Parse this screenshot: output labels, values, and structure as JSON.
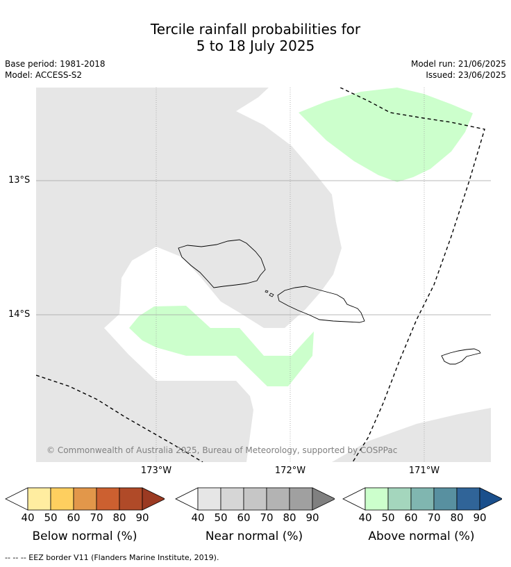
{
  "title_line1": "Tercile rainfall probabilities for",
  "title_line2": "5 to 18 July 2025",
  "meta_left": [
    "Base period: 1981-2018",
    "Model: ACCESS-S2"
  ],
  "meta_right": [
    "Model run: 21/06/2025",
    "Issued: 23/06/2025"
  ],
  "map": {
    "lat_labels": [
      "13°S",
      "14°S"
    ],
    "lon_labels": [
      "173°W",
      "172°W",
      "171°W"
    ],
    "copyright": "© Commonwealth of Australia 2025, Bureau of Meteorology, supported by COSPPac",
    "colors": {
      "near_normal_40": "#e6e6e6",
      "above_normal_40": "#ccffcc",
      "coast": "#000000",
      "eez": "#000000"
    }
  },
  "colorbars": [
    {
      "title": "Below normal (%)",
      "ticks": [
        "40",
        "50",
        "60",
        "70",
        "80",
        "90"
      ],
      "colors": [
        "#ffeda0",
        "#fecf5f",
        "#e2974a",
        "#cc6030",
        "#b04a28",
        "#9b3a22"
      ]
    },
    {
      "title": "Near normal (%)",
      "ticks": [
        "40",
        "50",
        "60",
        "70",
        "80",
        "90"
      ],
      "colors": [
        "#e6e6e6",
        "#d6d6d6",
        "#c6c6c6",
        "#b3b3b3",
        "#a0a0a0",
        "#808080"
      ]
    },
    {
      "title": "Above normal (%)",
      "ticks": [
        "40",
        "50",
        "60",
        "70",
        "80",
        "90"
      ],
      "colors": [
        "#ccffcc",
        "#a4d6bd",
        "#80b6b0",
        "#5890a0",
        "#306498",
        "#1a4f8c"
      ]
    }
  ],
  "footer": "--  --  -- EEZ border V11 (Flanders Marine Institute, 2019)."
}
